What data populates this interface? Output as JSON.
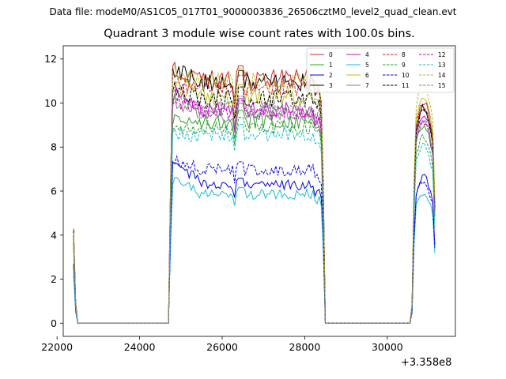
{
  "figure": {
    "suptitle": "Data file: modeM0/AS1C05_017T01_9000003836_26506cztM0_level2_quad_clean.evt"
  },
  "chart_data": {
    "type": "line",
    "title": "Quadrant 3 module wise count rates with 100.0s bins.",
    "xlabel": "",
    "ylabel": "",
    "x_offset_label": "+3.358e8",
    "xlim": [
      22150,
      31650
    ],
    "ylim": [
      -0.6,
      12.6
    ],
    "xticks": [
      22000,
      24000,
      26000,
      28000,
      30000
    ],
    "yticks": [
      0,
      2,
      4,
      6,
      8,
      10,
      12
    ],
    "grid": false,
    "legend_placement": "top-right",
    "x": [
      22400,
      22450,
      22500,
      24700,
      24750,
      24800,
      24850,
      24900,
      24950,
      25000,
      25050,
      25100,
      25150,
      25200,
      25250,
      25300,
      25350,
      25400,
      25450,
      25500,
      25550,
      25600,
      25650,
      25700,
      25750,
      25800,
      25850,
      25900,
      25950,
      26000,
      26050,
      26100,
      26150,
      26200,
      26250,
      26300,
      26350,
      26400,
      26450,
      26500,
      26550,
      26600,
      26650,
      26700,
      26750,
      26800,
      26850,
      26900,
      26950,
      27000,
      27050,
      27100,
      27150,
      27200,
      27250,
      27300,
      27350,
      27400,
      27450,
      27500,
      27550,
      27600,
      27650,
      27700,
      27750,
      27800,
      27850,
      27900,
      27950,
      28000,
      28050,
      28100,
      28150,
      28200,
      28250,
      28300,
      28350,
      28400,
      28450,
      28500,
      30500,
      30550,
      30600,
      30650,
      30700,
      30750,
      30800,
      30850,
      30900,
      30950,
      31000,
      31050,
      31100,
      31150
    ],
    "series": [
      {
        "name": "0",
        "color": "#d62728",
        "dashed": false,
        "peaks": [
          4.3,
          11.5,
          11.0,
          10.4
        ]
      },
      {
        "name": "1",
        "color": "#2ca02c",
        "dashed": false,
        "peaks": [
          3.6,
          9.2,
          9.1,
          9.3
        ]
      },
      {
        "name": "2",
        "color": "#0000ee",
        "dashed": false,
        "peaks": [
          2.6,
          7.2,
          6.2,
          6.8
        ]
      },
      {
        "name": "3",
        "color": "#000000",
        "dashed": false,
        "peaks": [
          4.2,
          11.4,
          10.8,
          10.1
        ]
      },
      {
        "name": "4",
        "color": "#cc00cc",
        "dashed": false,
        "peaks": [
          3.9,
          10.3,
          9.6,
          9.8
        ]
      },
      {
        "name": "5",
        "color": "#17becf",
        "dashed": false,
        "peaks": [
          2.2,
          6.4,
          5.8,
          6.1
        ]
      },
      {
        "name": "6",
        "color": "#bcbd22",
        "dashed": false,
        "peaks": [
          4.1,
          10.8,
          10.2,
          10.6
        ]
      },
      {
        "name": "7",
        "color": "#7f7f7f",
        "dashed": false,
        "peaks": [
          3.8,
          10.0,
          9.4,
          9.6
        ]
      },
      {
        "name": "8",
        "color": "#d62728",
        "dashed": true,
        "peaks": [
          4.0,
          10.9,
          10.6,
          10.2
        ]
      },
      {
        "name": "9",
        "color": "#2ca02c",
        "dashed": true,
        "peaks": [
          3.4,
          8.9,
          8.8,
          8.7
        ]
      },
      {
        "name": "10",
        "color": "#0000ee",
        "dashed": true,
        "peaks": [
          2.7,
          7.4,
          6.9,
          6.6
        ]
      },
      {
        "name": "11",
        "color": "#000000",
        "dashed": true,
        "peaks": [
          3.9,
          10.6,
          10.1,
          9.9
        ]
      },
      {
        "name": "12",
        "color": "#cc00cc",
        "dashed": true,
        "peaks": [
          3.7,
          10.1,
          9.5,
          9.4
        ]
      },
      {
        "name": "13",
        "color": "#17becf",
        "dashed": true,
        "peaks": [
          3.3,
          8.6,
          8.5,
          8.3
        ]
      },
      {
        "name": "14",
        "color": "#bcbd22",
        "dashed": true,
        "peaks": [
          4.1,
          11.3,
          10.9,
          11.2
        ]
      },
      {
        "name": "15",
        "color": "#7f7f7f",
        "dashed": true,
        "peaks": [
          3.8,
          10.3,
          9.7,
          9.5
        ]
      }
    ],
    "shape_note": ""
  }
}
